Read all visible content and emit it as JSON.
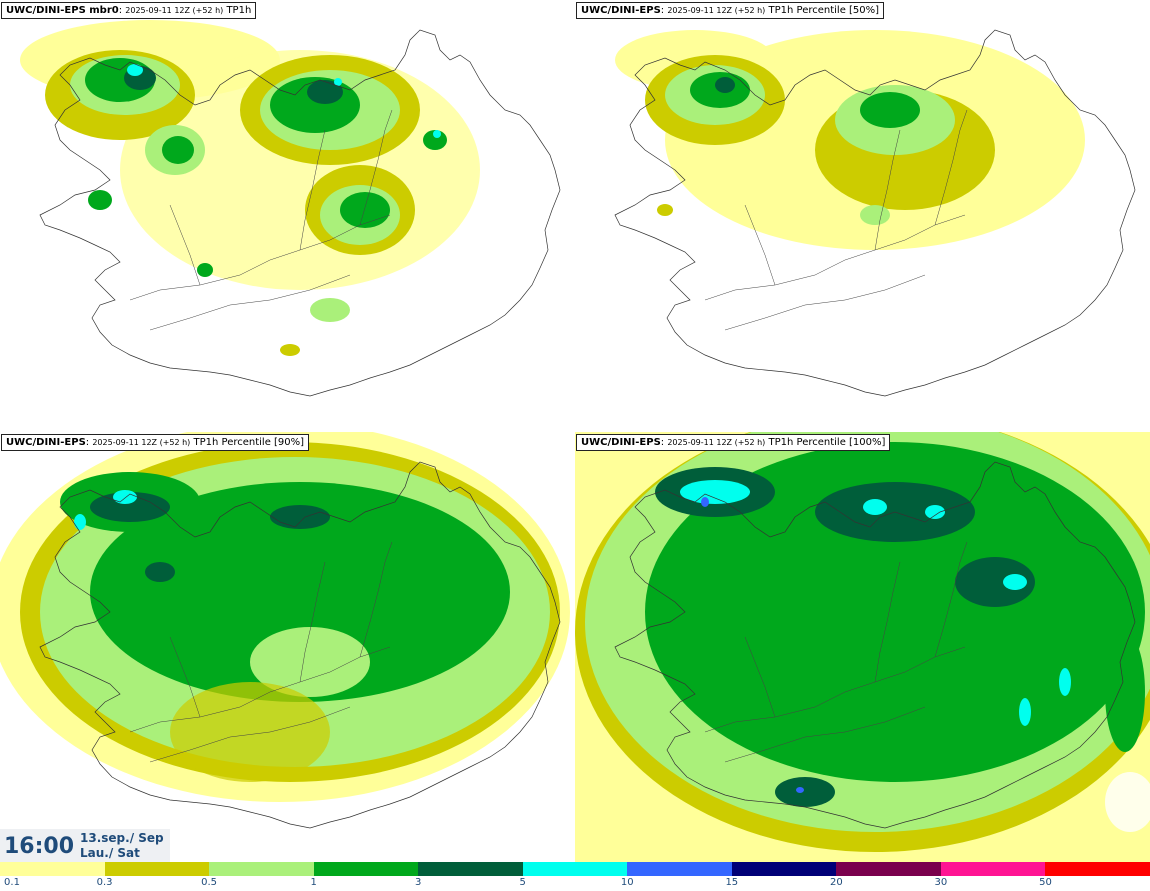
{
  "panels": [
    {
      "model": "UWC/DINI-EPS mbr0",
      "date": "2025-09-11 12Z (+52 h)",
      "field": "TP1h"
    },
    {
      "model": "UWC/DINI-EPS",
      "date": "2025-09-11 12Z (+52 h)",
      "field": "TP1h Percentile [50%]"
    },
    {
      "model": "UWC/DINI-EPS",
      "date": "2025-09-11 12Z (+52 h)",
      "field": "TP1h Percentile [90%]"
    },
    {
      "model": "UWC/DINI-EPS",
      "date": "2025-09-11 12Z (+52 h)",
      "field": "TP1h Percentile [100%]"
    }
  ],
  "valid": {
    "time": "16:00",
    "date_line1": "13.sep./ Sep",
    "date_line2": "Lau./ Sat"
  },
  "legend": {
    "labels": [
      "0.1",
      "0.3",
      "0.5",
      "1",
      "3",
      "5",
      "10",
      "15",
      "20",
      "30",
      "50"
    ],
    "colors": [
      "#ffff99",
      "#cccc00",
      "#aaf07a",
      "#00a81c",
      "#005e3a",
      "#00ffee",
      "#3366ff",
      "#000077",
      "#7a004d",
      "#ff1493",
      "#ff0000"
    ]
  }
}
